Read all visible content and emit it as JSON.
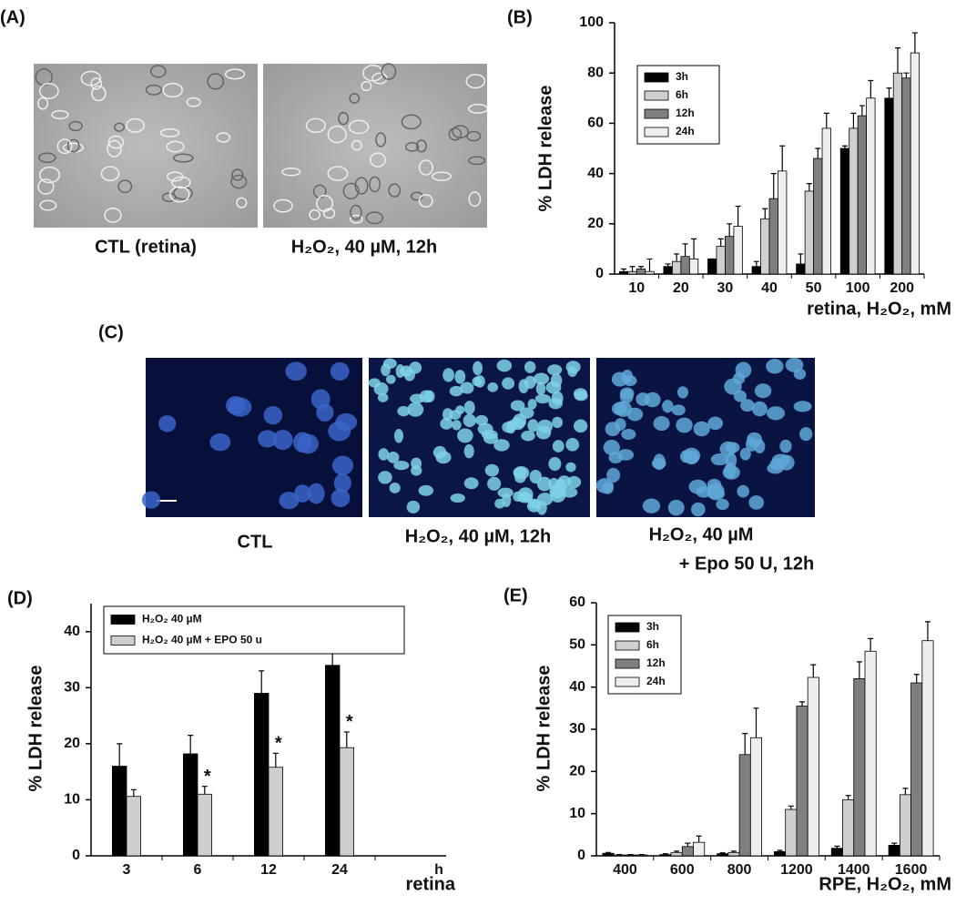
{
  "figure_panels": [
    {
      "label": "(A)",
      "captions": [
        "CTL (retina)",
        "H₂O₂, 40 µM, 12h"
      ]
    },
    {
      "label": "(C)",
      "captions": [
        "CTL",
        "H₂O₂, 40 µM, 12h",
        "H₂O₂, 40 µM",
        "+ Epo 50 U, 12h"
      ]
    }
  ],
  "chart_data": [
    {
      "type": "bar",
      "label": "(B)",
      "ylabel": "% LDH release",
      "xlabel": "retina, H₂O₂, mM",
      "categories": [
        "10",
        "20",
        "30",
        "40",
        "50",
        "100",
        "200"
      ],
      "series": [
        {
          "name": "3h",
          "color": "#000000",
          "values": [
            1,
            3,
            6,
            3,
            4,
            50,
            70
          ],
          "errors": [
            1,
            1,
            0,
            2,
            4,
            1,
            4
          ]
        },
        {
          "name": "6h",
          "color": "#cfcfcf",
          "values": [
            1,
            5,
            11,
            22,
            33,
            58,
            80
          ],
          "errors": [
            2,
            3,
            3,
            4,
            3,
            6,
            10
          ]
        },
        {
          "name": "12h",
          "color": "#7f7f7f",
          "values": [
            2,
            7,
            15,
            30,
            46,
            63,
            78
          ],
          "errors": [
            1,
            5,
            5,
            10,
            4,
            4,
            2
          ]
        },
        {
          "name": "24h",
          "color": "#eeeeee",
          "values": [
            1,
            6,
            19,
            41,
            58,
            70,
            88
          ],
          "errors": [
            5,
            8,
            8,
            10,
            6,
            7,
            8
          ]
        }
      ],
      "ylim": [
        0,
        100
      ],
      "yticks": [
        0,
        20,
        40,
        60,
        80,
        100
      ],
      "legend": "top-left"
    },
    {
      "type": "bar",
      "label": "(D)",
      "ylabel": "% LDH release",
      "xlabel": "retina",
      "x_unit": "h",
      "categories": [
        "3",
        "6",
        "12",
        "24"
      ],
      "series": [
        {
          "name": "H₂O₂ 40 µM",
          "color": "#000000",
          "values": [
            16,
            18.2,
            29,
            34
          ],
          "errors": [
            4,
            3.3,
            4,
            5.5
          ]
        },
        {
          "name": "H₂O₂ 40 µM + EPO 50 u",
          "color": "#cfcfcf",
          "values": [
            10.6,
            11,
            15.8,
            19.3
          ],
          "errors": [
            1.2,
            1.4,
            2.5,
            2.8
          ],
          "markers": [
            null,
            "*",
            "*",
            "*"
          ]
        }
      ],
      "ylim": [
        0,
        45
      ],
      "yticks": [
        0,
        10,
        20,
        30,
        40
      ],
      "legend": "top-left"
    },
    {
      "type": "bar",
      "label": "(E)",
      "ylabel": "% LDH release",
      "xlabel": "RPE, H₂O₂, mM",
      "categories": [
        "400",
        "600",
        "800",
        "1200",
        "1400",
        "1600"
      ],
      "series": [
        {
          "name": "3h",
          "color": "#000000",
          "values": [
            0.6,
            0.3,
            0.5,
            1,
            1.8,
            2.5
          ],
          "errors": [
            0.2,
            0.2,
            0.2,
            0.3,
            0.5,
            0.5
          ]
        },
        {
          "name": "6h",
          "color": "#cfcfcf",
          "values": [
            0.2,
            0.8,
            0.8,
            11,
            13.3,
            14.5
          ],
          "errors": [
            0.1,
            0.3,
            0.3,
            0.8,
            1,
            1.5
          ]
        },
        {
          "name": "12h",
          "color": "#7f7f7f",
          "values": [
            0.2,
            2.2,
            24,
            35.5,
            42,
            41
          ],
          "errors": [
            0.1,
            0.8,
            5,
            1,
            4,
            2
          ]
        },
        {
          "name": "24h",
          "color": "#eeeeee",
          "values": [
            0.2,
            3.2,
            28,
            42.3,
            48.5,
            51
          ],
          "errors": [
            0.1,
            1.5,
            7,
            3,
            3,
            4.5
          ]
        }
      ],
      "ylim": [
        0,
        60
      ],
      "yticks": [
        0,
        10,
        20,
        30,
        40,
        50,
        60
      ],
      "legend": "top-left"
    }
  ]
}
